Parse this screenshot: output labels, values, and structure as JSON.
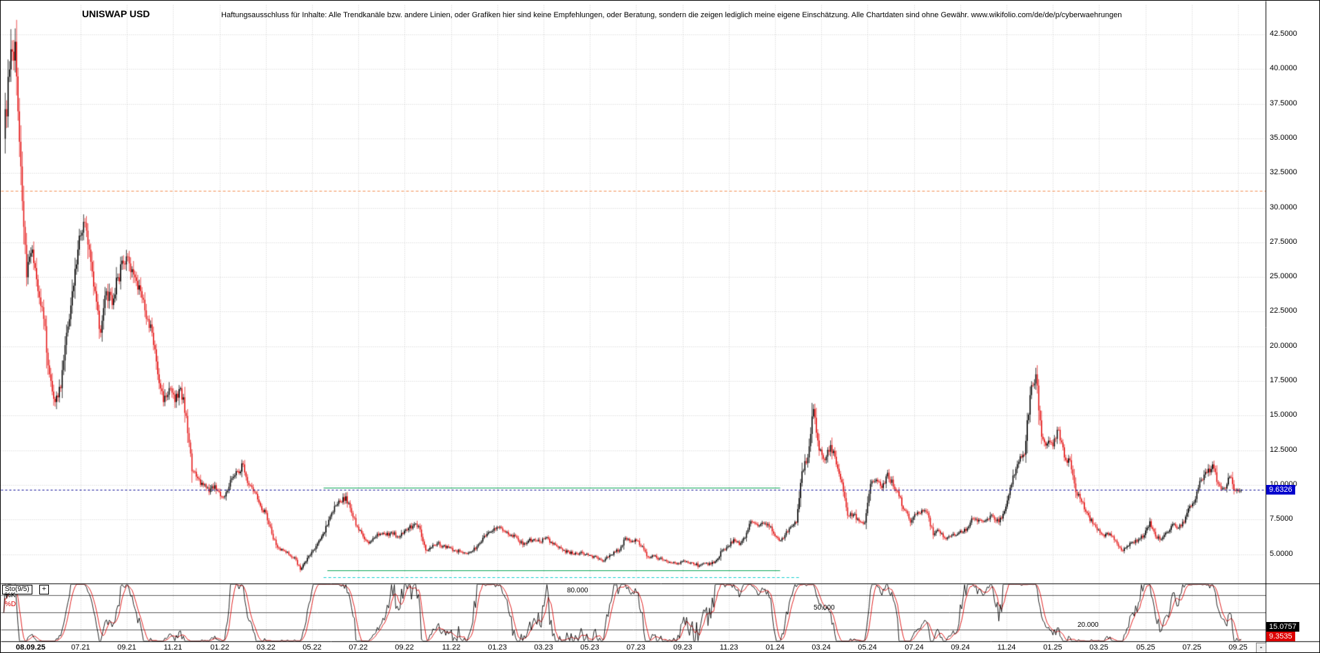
{
  "header": {
    "title": "UNISWAP USD",
    "disclaimer": "Haftungsausschluss für Inhalte: Alle Trendkanäle bzw. andere Linien, oder Grafiken hier sind keine Empfehlungen, oder Beratung, sondern die zeigen lediglich meine eigene Einschätzung. Alle Chartdaten sind ohne Gewähr. www.wikifolio.com/de/de/p/cyberwaehrungen"
  },
  "price_axis": {
    "labels": [
      "42.5000",
      "40.0000",
      "37.5000",
      "35.0000",
      "32.5000",
      "30.0000",
      "27.5000",
      "25.0000",
      "22.5000",
      "20.0000",
      "17.5000",
      "15.0000",
      "12.5000",
      "10.0000",
      "7.5000",
      "5.0000"
    ],
    "current_price_tag": "9.6326"
  },
  "x_axis": {
    "origin_label": "08.09.25",
    "labels": [
      "07.21",
      "09.21",
      "11.21",
      "01.22",
      "03.22",
      "05.22",
      "07.22",
      "09.22",
      "11.22",
      "01.23",
      "03.23",
      "05.23",
      "07.23",
      "09.23",
      "11.23",
      "01.24",
      "03.24",
      "05.24",
      "07.24",
      "09.24",
      "11.24",
      "01.25",
      "03.25",
      "05.25",
      "07.25",
      "09.25"
    ],
    "collapse_button": "-"
  },
  "sto_panel": {
    "indicator_label": "Sto(9/5)",
    "add_button": "+",
    "k_label": "%K",
    "d_label": "%D",
    "level_labels": [
      "80.000",
      "50.000",
      "20.000"
    ],
    "k_value": "15.0757",
    "d_value": "9.3535"
  },
  "chart_data": {
    "type": "candlestick",
    "title": "UNISWAP USD",
    "x_tick_labels": [
      "07.21",
      "09.21",
      "11.21",
      "01.22",
      "03.22",
      "05.22",
      "07.22",
      "09.22",
      "11.22",
      "01.23",
      "03.23",
      "05.23",
      "07.23",
      "09.23",
      "11.23",
      "01.24",
      "03.24",
      "05.24",
      "07.24",
      "09.24",
      "11.24",
      "01.25",
      "03.25",
      "05.25",
      "07.25",
      "09.25"
    ],
    "y_tick_values": [
      42.5,
      40,
      37.5,
      35,
      32.5,
      30,
      27.5,
      25,
      22.5,
      20,
      17.5,
      15,
      12.5,
      10,
      7.5,
      5
    ],
    "ylim": [
      3.0,
      44.8
    ],
    "current_price": 9.6326,
    "colors": {
      "up": "#000000",
      "down": "#e41515",
      "grid": "#c8c8c8",
      "current_price_line": "#000090",
      "current_price_tag_bg": "#0000cc",
      "k_line": "#000000",
      "d_line": "#dd0000",
      "k_tag_bg": "#000000",
      "d_tag_bg": "#dd0000",
      "trend_line_orange": "#f08a4b",
      "support_green": "#00a050",
      "support_cyan": "#00cccc",
      "sto_level_line": "#555555"
    },
    "weekly_closes": [
      35,
      40,
      42,
      33,
      25,
      27,
      24,
      22,
      18,
      16,
      17,
      21,
      24,
      27,
      29,
      27,
      24,
      21,
      24,
      23,
      25,
      26,
      26,
      25,
      24,
      22,
      21,
      18,
      16,
      17,
      16,
      17,
      15,
      11,
      10.5,
      10,
      9.5,
      10,
      9.2,
      9.5,
      10.5,
      11,
      11.5,
      10,
      9.5,
      8.5,
      8,
      6.5,
      5.5,
      5.3,
      5,
      4.8,
      3.9,
      4.5,
      5.2,
      5.8,
      6.5,
      7.5,
      8.5,
      8.8,
      9.2,
      8,
      7,
      6.3,
      5.8,
      6.2,
      6.5,
      6.4,
      6.6,
      6.3,
      6.5,
      6.9,
      7.2,
      6.8,
      5.3,
      5.5,
      5.8,
      5.6,
      5.5,
      5.3,
      5.2,
      5.1,
      5.2,
      5.6,
      6.2,
      6.6,
      6.9,
      7,
      6.6,
      6.4,
      6.2,
      5.7,
      6,
      6.1,
      5.9,
      6.2,
      5.9,
      5.6,
      5.3,
      5.2,
      5,
      5.1,
      5,
      4.9,
      4.8,
      4.5,
      4.8,
      5.2,
      5.3,
      6.2,
      5.9,
      6,
      5.6,
      4.8,
      4.9,
      4.7,
      4.6,
      4.4,
      4.3,
      4.5,
      4.4,
      4.3,
      4.2,
      4.35,
      4.3,
      4.6,
      5.3,
      5.6,
      6.1,
      5.7,
      6.2,
      7.4,
      7.2,
      7.3,
      7.2,
      6.5,
      6,
      6.4,
      7,
      7.3,
      11,
      12,
      15.5,
      12.5,
      11.8,
      12.9,
      11.5,
      10.2,
      7.8,
      7.9,
      7.4,
      7.3,
      10.1,
      10.4,
      9.8,
      10.9,
      9.9,
      9.2,
      8.2,
      7.3,
      7.9,
      8.2,
      8,
      6.4,
      6.7,
      6.2,
      6.3,
      6.4,
      6.6,
      6.9,
      7.6,
      7.5,
      7.4,
      7.8,
      7.4,
      7.6,
      8.9,
      10.7,
      11.7,
      12.2,
      16.5,
      18,
      13.5,
      13,
      12.8,
      14,
      12,
      11.8,
      9.5,
      8.8,
      8,
      7.2,
      6.8,
      6.3,
      6.5,
      6,
      5.3,
      5.6,
      5.9,
      6.1,
      6.4,
      7.4,
      6.3,
      6.1,
      6.6,
      7.2,
      6.9,
      7.3,
      8.5,
      9,
      10.4,
      10.9,
      11.5,
      10.1,
      9.8,
      10.6,
      9.6,
      9.63
    ],
    "overlays": [
      {
        "name": "orange-dashed-resistance",
        "price": 31.2,
        "dashed": true,
        "color_key": "trend_line_orange",
        "from": 0,
        "to": 1
      },
      {
        "name": "green-resistance-line",
        "price": 9.8,
        "dashed": false,
        "color_key": "support_green",
        "from": 0.255,
        "to": 0.616
      },
      {
        "name": "green-support-line",
        "price": 3.85,
        "dashed": false,
        "color_key": "support_green",
        "from": 0.258,
        "to": 0.616
      },
      {
        "name": "cyan-support-line",
        "price": 3.35,
        "dashed": true,
        "color_key": "support_cyan",
        "from": 0.255,
        "to": 0.632
      },
      {
        "name": "current-price-line",
        "price": 9.6326,
        "dashed": true,
        "color_key": "current_price_line",
        "from": 0,
        "to": 1
      }
    ],
    "stochastic": {
      "label": "Sto(9/5)",
      "k_period": 9,
      "d_period": 5,
      "levels": [
        80,
        50,
        20
      ],
      "k_last": 15.0757,
      "d_last": 9.3535
    }
  }
}
